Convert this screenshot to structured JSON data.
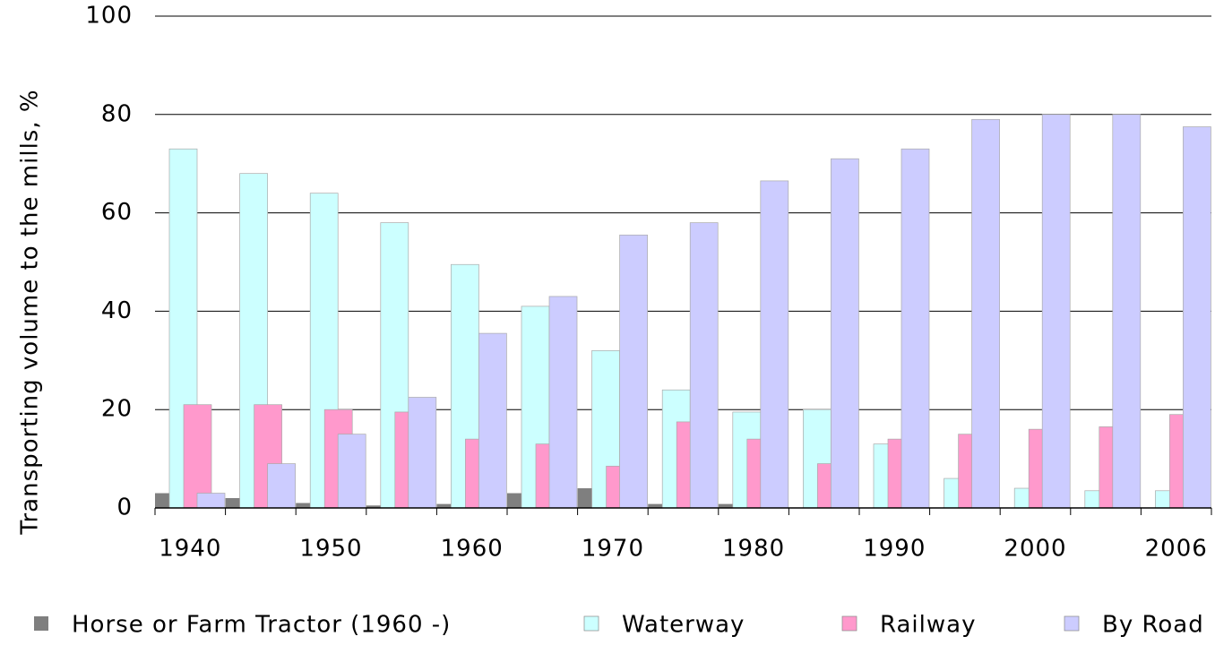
{
  "chart_data": {
    "type": "bar",
    "y_axis_label": "Transporting volume to the mills, %",
    "categories": [
      "1940",
      null,
      "1950",
      null,
      "1960",
      null,
      "1970",
      null,
      "1980",
      null,
      "1990",
      null,
      "2000",
      null,
      "2006"
    ],
    "series": [
      {
        "name": "Horse or Farm Tractor (1960 -)",
        "color": "#7f7f7f",
        "values": [
          3,
          2,
          1,
          0.5,
          0.8,
          3,
          4,
          0.8,
          0.8,
          0,
          0,
          0,
          0,
          0,
          0
        ]
      },
      {
        "name": "Waterway",
        "color": "#ccffff",
        "values": [
          73,
          68,
          64,
          58,
          49.5,
          41,
          32,
          24,
          19.5,
          20,
          13,
          6,
          4,
          3.5,
          3.5
        ]
      },
      {
        "name": "Railway",
        "color": "#ff99cc",
        "values": [
          21,
          21,
          20,
          19.5,
          14,
          13,
          8.5,
          17.5,
          14,
          9,
          14,
          15,
          16,
          16.5,
          19
        ]
      },
      {
        "name": "By Road",
        "color": "#ccccff",
        "values": [
          3,
          9,
          15,
          22.5,
          35.5,
          43,
          55.5,
          58,
          66.5,
          71,
          73,
          79,
          80,
          80,
          77.5
        ]
      }
    ],
    "ylim": [
      0,
      100
    ],
    "yticks": [
      0,
      20,
      40,
      60,
      80,
      100
    ],
    "grid": true
  }
}
